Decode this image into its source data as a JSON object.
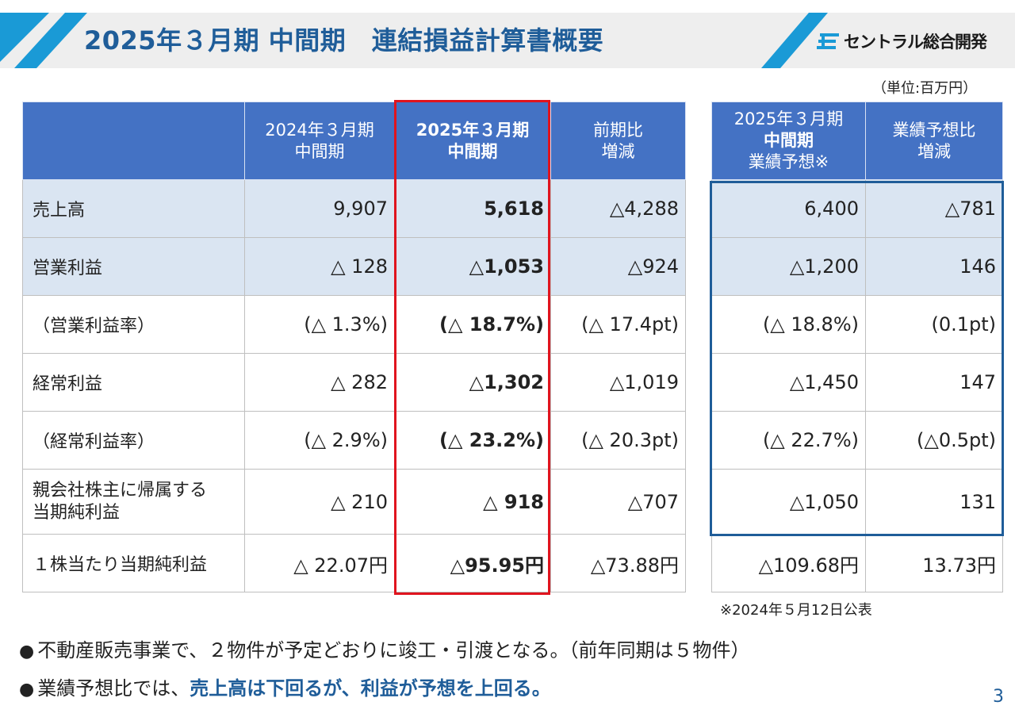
{
  "title": "2025年３月期 中間期　連結損益計算書概要",
  "logo": {
    "text": "セントラル総合開発"
  },
  "unit_label": "（単位:百万円）",
  "table": {
    "headers": {
      "prev_line1": "2024年３月期",
      "prev_line2": "中間期",
      "curr_line1": "2025年３月期",
      "curr_line2": "中間期",
      "diff_line1": "前期比",
      "diff_line2": "増減",
      "fc_line1": "2025年３月期",
      "fc_line2": "中間期",
      "fc_line3": "業績予想※",
      "fcdiff_line1": "業績予想比",
      "fcdiff_line2": "増減"
    },
    "rows": [
      {
        "label": "売上高",
        "prev": "9,907",
        "curr": "5,618",
        "diff": "△4,288",
        "fc": "6,400",
        "fcdiff": "△781"
      },
      {
        "label": "営業利益",
        "prev": "△ 128",
        "curr": "△1,053",
        "diff": "△924",
        "fc": "△1,200",
        "fcdiff": "146"
      },
      {
        "label": "（営業利益率）",
        "prev": "(△ 1.3%)",
        "curr": "(△ 18.7%)",
        "diff": "(△ 17.4pt)",
        "fc": "(△ 18.8%)",
        "fcdiff": "(0.1pt)"
      },
      {
        "label": "経常利益",
        "prev": "△ 282",
        "curr": "△1,302",
        "diff": "△1,019",
        "fc": "△1,450",
        "fcdiff": "147"
      },
      {
        "label": "（経常利益率）",
        "prev": "(△ 2.9%)",
        "curr": "(△ 23.2%)",
        "diff": "(△ 20.3pt)",
        "fc": "(△ 22.7%)",
        "fcdiff": "(△0.5pt)"
      },
      {
        "label_line1": "親会社株主に帰属する",
        "label_line2": "当期純利益",
        "prev": "△ 210",
        "curr": "△ 918",
        "diff": "△707",
        "fc": "△1,050",
        "fcdiff": "131"
      },
      {
        "label": "１株当たり当期純利益",
        "prev": "△ 22.07円",
        "curr": "△95.95円",
        "diff": "△73.88円",
        "fc": "△109.68円",
        "fcdiff": "13.73円"
      }
    ]
  },
  "footnote": "※2024年５月12日公表",
  "bullets": [
    {
      "text": "不動産販売事業で、２物件が予定どおりに竣工・引渡となる。（前年同期は５物件）"
    },
    {
      "text": "業績予想比では、",
      "highlight": "売上高は下回るが、利益が予想を上回る。"
    }
  ],
  "bullet_symbol": "●",
  "page_number": "3",
  "colors": {
    "title": "#1f5d99",
    "header_fill": "#4472c4",
    "row_shade": "#dae5f2",
    "red_frame": "#e0141e",
    "blue_frame": "#1f5d99",
    "stripe": "#1a9ad6"
  }
}
